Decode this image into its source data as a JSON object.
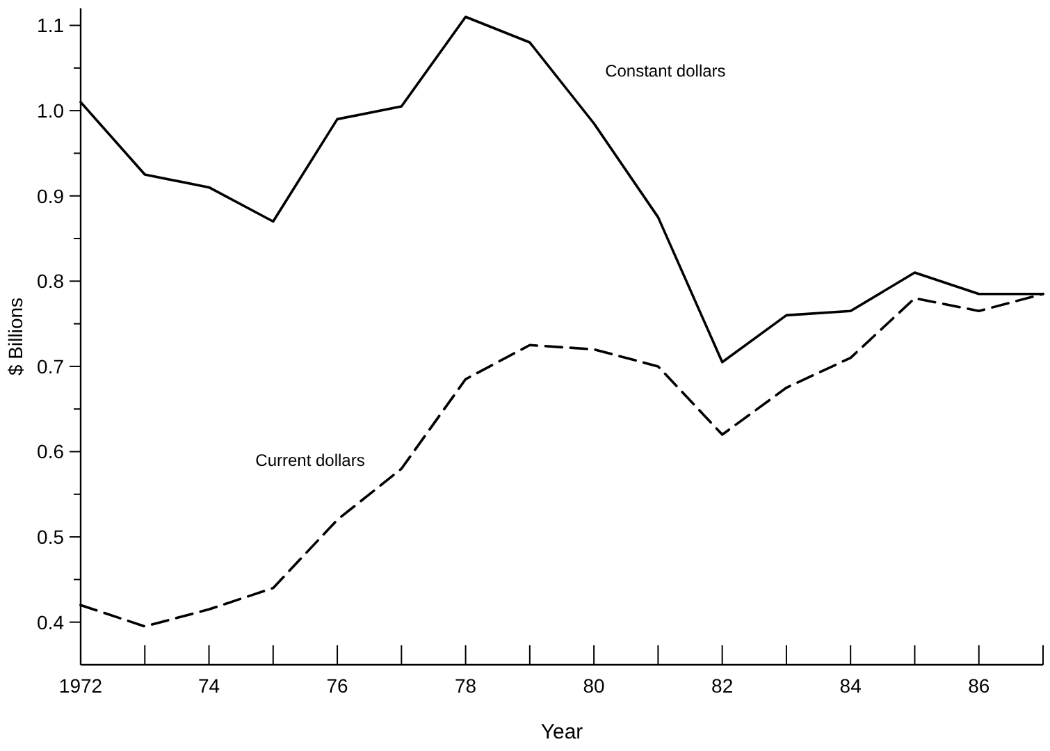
{
  "chart_data": {
    "type": "line",
    "xlabel": "Year",
    "ylabel": "$ Billions",
    "x": [
      1972,
      1973,
      1974,
      1975,
      1976,
      1977,
      1978,
      1979,
      1980,
      1981,
      1982,
      1983,
      1984,
      1985,
      1986,
      1987
    ],
    "series": [
      {
        "name": "Constant dollars",
        "color": "#000000",
        "line_style": "solid",
        "values": [
          1.01,
          0.925,
          0.91,
          0.87,
          0.99,
          1.005,
          1.11,
          1.08,
          0.985,
          0.875,
          0.705,
          0.76,
          0.765,
          0.81,
          0.785,
          0.785
        ]
      },
      {
        "name": "Current dollars",
        "color": "#000000",
        "line_style": "dashed",
        "values": [
          0.42,
          0.395,
          0.415,
          0.44,
          0.52,
          0.58,
          0.685,
          0.725,
          0.72,
          0.7,
          0.62,
          0.675,
          0.71,
          0.78,
          0.765,
          0.785
        ]
      }
    ],
    "xlim": [
      1972,
      1987
    ],
    "xticks": [
      {
        "value": 1972,
        "label": "1972"
      },
      {
        "value": 1973,
        "label": null
      },
      {
        "value": 1974,
        "label": "74"
      },
      {
        "value": 1975,
        "label": null
      },
      {
        "value": 1976,
        "label": "76"
      },
      {
        "value": 1977,
        "label": null
      },
      {
        "value": 1978,
        "label": "78"
      },
      {
        "value": 1979,
        "label": null
      },
      {
        "value": 1980,
        "label": "80"
      },
      {
        "value": 1981,
        "label": null
      },
      {
        "value": 1982,
        "label": "82"
      },
      {
        "value": 1983,
        "label": null
      },
      {
        "value": 1984,
        "label": "84"
      },
      {
        "value": 1985,
        "label": null
      },
      {
        "value": 1986,
        "label": "86"
      },
      {
        "value": 1987,
        "label": null
      }
    ],
    "ylim": [
      0.35,
      1.12
    ],
    "yticks": [
      {
        "value": 0.4,
        "label": "0.4"
      },
      {
        "value": 0.45,
        "label": null
      },
      {
        "value": 0.5,
        "label": "0.5"
      },
      {
        "value": 0.55,
        "label": null
      },
      {
        "value": 0.6,
        "label": "0.6"
      },
      {
        "value": 0.65,
        "label": null
      },
      {
        "value": 0.7,
        "label": "0.7"
      },
      {
        "value": 0.75,
        "label": null
      },
      {
        "value": 0.8,
        "label": "0.8"
      },
      {
        "value": 0.85,
        "label": null
      },
      {
        "value": 0.9,
        "label": "0.9"
      },
      {
        "value": 0.95,
        "label": null
      },
      {
        "value": 1.0,
        "label": "1.0"
      },
      {
        "value": 1.05,
        "label": null
      },
      {
        "value": 1.1,
        "label": "1.1"
      }
    ],
    "grid": false
  }
}
